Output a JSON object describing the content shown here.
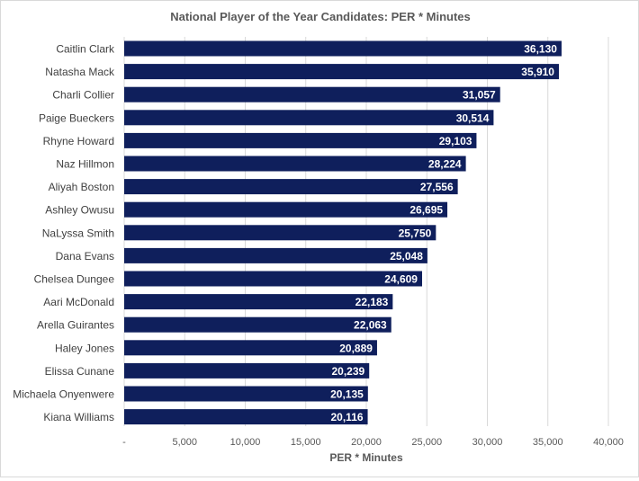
{
  "chart_data": {
    "type": "bar",
    "orientation": "horizontal",
    "title": "National Player of the Year Candidates: PER * Minutes",
    "xlabel": "PER * Minutes",
    "ylabel": "",
    "xlim": [
      0,
      40000
    ],
    "grid": true,
    "legend": "none",
    "bar_color": "#0f1f5c",
    "label_color": "#ffffff",
    "categories": [
      "Caitlin Clark",
      "Natasha Mack",
      "Charli Collier",
      "Paige Bueckers",
      "Rhyne Howard",
      "Naz Hillmon",
      "Aliyah Boston",
      "Ashley Owusu",
      "NaLyssa Smith",
      "Dana Evans",
      "Chelsea Dungee",
      "Aari McDonald",
      "Arella Guirantes",
      "Haley Jones",
      "Elissa Cunane",
      "Michaela Onyenwere",
      "Kiana Williams"
    ],
    "values": [
      36130,
      35910,
      31057,
      30514,
      29103,
      28224,
      27556,
      26695,
      25750,
      25048,
      24609,
      22183,
      22063,
      20889,
      20239,
      20135,
      20116
    ],
    "value_labels": [
      "36,130",
      "35,910",
      "31,057",
      "30,514",
      "29,103",
      "28,224",
      "27,556",
      "26,695",
      "25,750",
      "25,048",
      "24,609",
      "22,183",
      "22,063",
      "20,889",
      "20,239",
      "20,135",
      "20,116"
    ],
    "x_ticks": [
      0,
      5000,
      10000,
      15000,
      20000,
      25000,
      30000,
      35000,
      40000
    ],
    "x_tick_labels": [
      "-",
      "5,000",
      "10,000",
      "15,000",
      "20,000",
      "25,000",
      "30,000",
      "35,000",
      "40,000"
    ]
  }
}
